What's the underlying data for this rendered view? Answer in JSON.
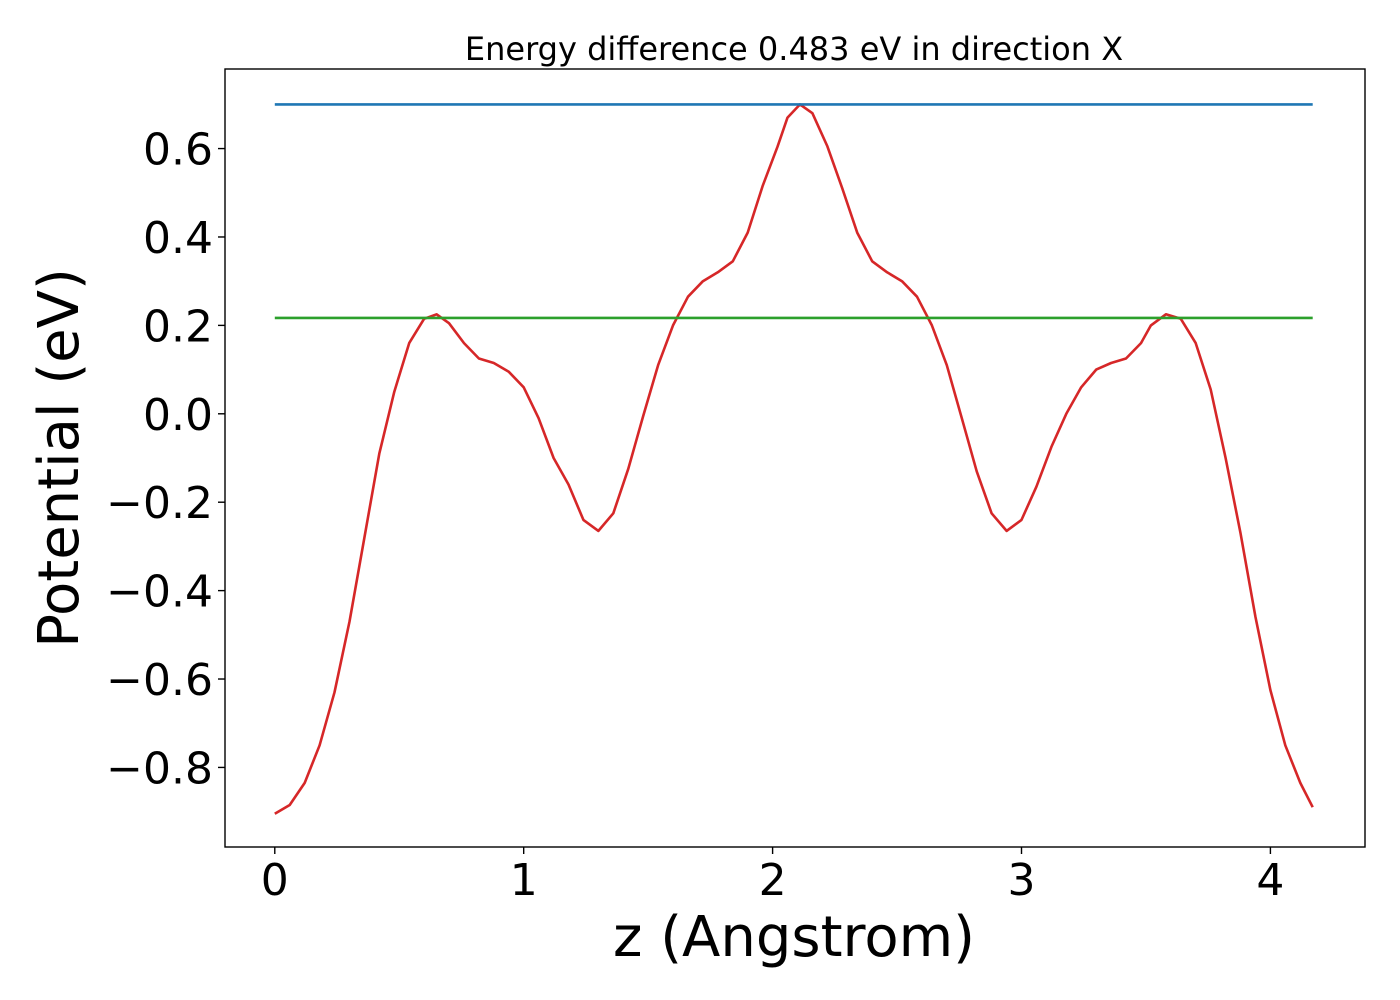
{
  "chart_data": {
    "type": "line",
    "title": "Energy difference 0.483 eV in direction X",
    "xlabel": "z (Angstrom)",
    "ylabel": "Potential (eV)",
    "xlim": [
      -0.2,
      4.38
    ],
    "ylim": [
      -0.98,
      0.78
    ],
    "xticks": [
      0,
      1,
      2,
      3,
      4
    ],
    "xtick_labels": [
      "0",
      "1",
      "2",
      "3",
      "4"
    ],
    "yticks": [
      -0.8,
      -0.6,
      -0.4,
      -0.2,
      0.0,
      0.2,
      0.4,
      0.6
    ],
    "ytick_labels": [
      "−0.8",
      "−0.6",
      "−0.4",
      "−0.2",
      "0.0",
      "0.2",
      "0.4",
      "0.6"
    ],
    "grid": false,
    "series": [
      {
        "color": "#d62728",
        "x": [
          0.0,
          0.06,
          0.12,
          0.18,
          0.24,
          0.3,
          0.36,
          0.42,
          0.48,
          0.54,
          0.6,
          0.65,
          0.7,
          0.76,
          0.82,
          0.88,
          0.94,
          1.0,
          1.06,
          1.12,
          1.18,
          1.24,
          1.3,
          1.36,
          1.42,
          1.48,
          1.54,
          1.6,
          1.66,
          1.72,
          1.78,
          1.84,
          1.9,
          1.96,
          2.02,
          2.06,
          2.11,
          2.16,
          2.22,
          2.28,
          2.34,
          2.4,
          2.46,
          2.52,
          2.58,
          2.64,
          2.7,
          2.76,
          2.82,
          2.88,
          2.94,
          3.0,
          3.06,
          3.12,
          3.18,
          3.24,
          3.3,
          3.36,
          3.42,
          3.48,
          3.52,
          3.58,
          3.64,
          3.7,
          3.76,
          3.82,
          3.88,
          3.94,
          4.0,
          4.06,
          4.12,
          4.17
        ],
        "y": [
          -0.905,
          -0.885,
          -0.835,
          -0.75,
          -0.63,
          -0.47,
          -0.28,
          -0.09,
          0.05,
          0.16,
          0.215,
          0.225,
          0.205,
          0.16,
          0.125,
          0.115,
          0.095,
          0.06,
          -0.01,
          -0.1,
          -0.16,
          -0.24,
          -0.265,
          -0.225,
          -0.125,
          -0.005,
          0.11,
          0.2,
          0.265,
          0.3,
          0.32,
          0.345,
          0.41,
          0.515,
          0.605,
          0.67,
          0.7,
          0.68,
          0.605,
          0.51,
          0.41,
          0.345,
          0.32,
          0.3,
          0.265,
          0.2,
          0.11,
          -0.01,
          -0.13,
          -0.225,
          -0.265,
          -0.24,
          -0.165,
          -0.075,
          0.0,
          0.06,
          0.1,
          0.115,
          0.125,
          0.16,
          0.2,
          0.225,
          0.215,
          0.16,
          0.055,
          -0.1,
          -0.27,
          -0.46,
          -0.625,
          -0.75,
          -0.835,
          -0.89
        ]
      },
      {
        "color": "#1f77b4",
        "x": [
          0.0,
          4.17
        ],
        "y": [
          0.7,
          0.7
        ]
      },
      {
        "color": "#2ca02c",
        "x": [
          0.0,
          4.17
        ],
        "y": [
          0.217,
          0.217
        ]
      }
    ]
  }
}
